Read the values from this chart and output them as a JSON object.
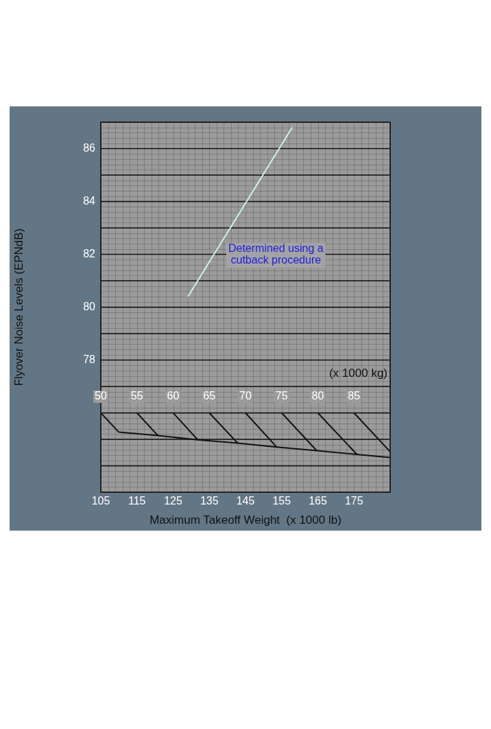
{
  "chart_data": {
    "type": "line",
    "xlabel": "Maximum Takeoff Weight  (x 1000 lb)",
    "ylabel": "Flyover Noise Levels (EPNdB)",
    "x2label": "(x 1000 kg)",
    "xlim": [
      105,
      185
    ],
    "xticks": [
      105,
      115,
      125,
      135,
      145,
      155,
      165,
      175
    ],
    "x2lim": [
      50,
      90
    ],
    "x2ticks": [
      50,
      55,
      60,
      65,
      70,
      75,
      80,
      85
    ],
    "ylim": [
      73,
      87
    ],
    "yticks": [
      78,
      80,
      82,
      84,
      86
    ],
    "grid": true,
    "legend": false,
    "annotations": [
      "Determined using a\ncutback procedure"
    ],
    "series": [
      {
        "color": "#c8f4ee",
        "x": [
          129.1,
          157.9
        ],
        "values": [
          80.4,
          86.8
        ]
      },
      {
        "color": "#111111",
        "x": [
          110,
          120.8,
          131.8,
          142.8,
          153.6,
          164.7,
          175.8,
          185
        ],
        "values": [
          75.27,
          75.14,
          74.98,
          74.86,
          74.71,
          74.57,
          74.43,
          74.31
        ]
      },
      {
        "color": "#111111",
        "x": [
          105,
          110
        ],
        "values": [
          76,
          75.27
        ]
      },
      {
        "color": "#111111",
        "x": [
          115,
          120.8
        ],
        "values": [
          76,
          75.14
        ]
      },
      {
        "color": "#111111",
        "x": [
          125,
          131.8
        ],
        "values": [
          76,
          74.98
        ]
      },
      {
        "color": "#111111",
        "x": [
          135,
          142.8
        ],
        "values": [
          76,
          74.86
        ]
      },
      {
        "color": "#111111",
        "x": [
          145,
          153.6
        ],
        "values": [
          76,
          74.71
        ]
      },
      {
        "color": "#111111",
        "x": [
          155,
          164.7
        ],
        "values": [
          76,
          74.57
        ]
      },
      {
        "color": "#111111",
        "x": [
          165,
          175.8
        ],
        "values": [
          76,
          74.43
        ]
      },
      {
        "color": "#111111",
        "x": [
          175,
          185
        ],
        "values": [
          76,
          74.53
        ]
      }
    ]
  }
}
